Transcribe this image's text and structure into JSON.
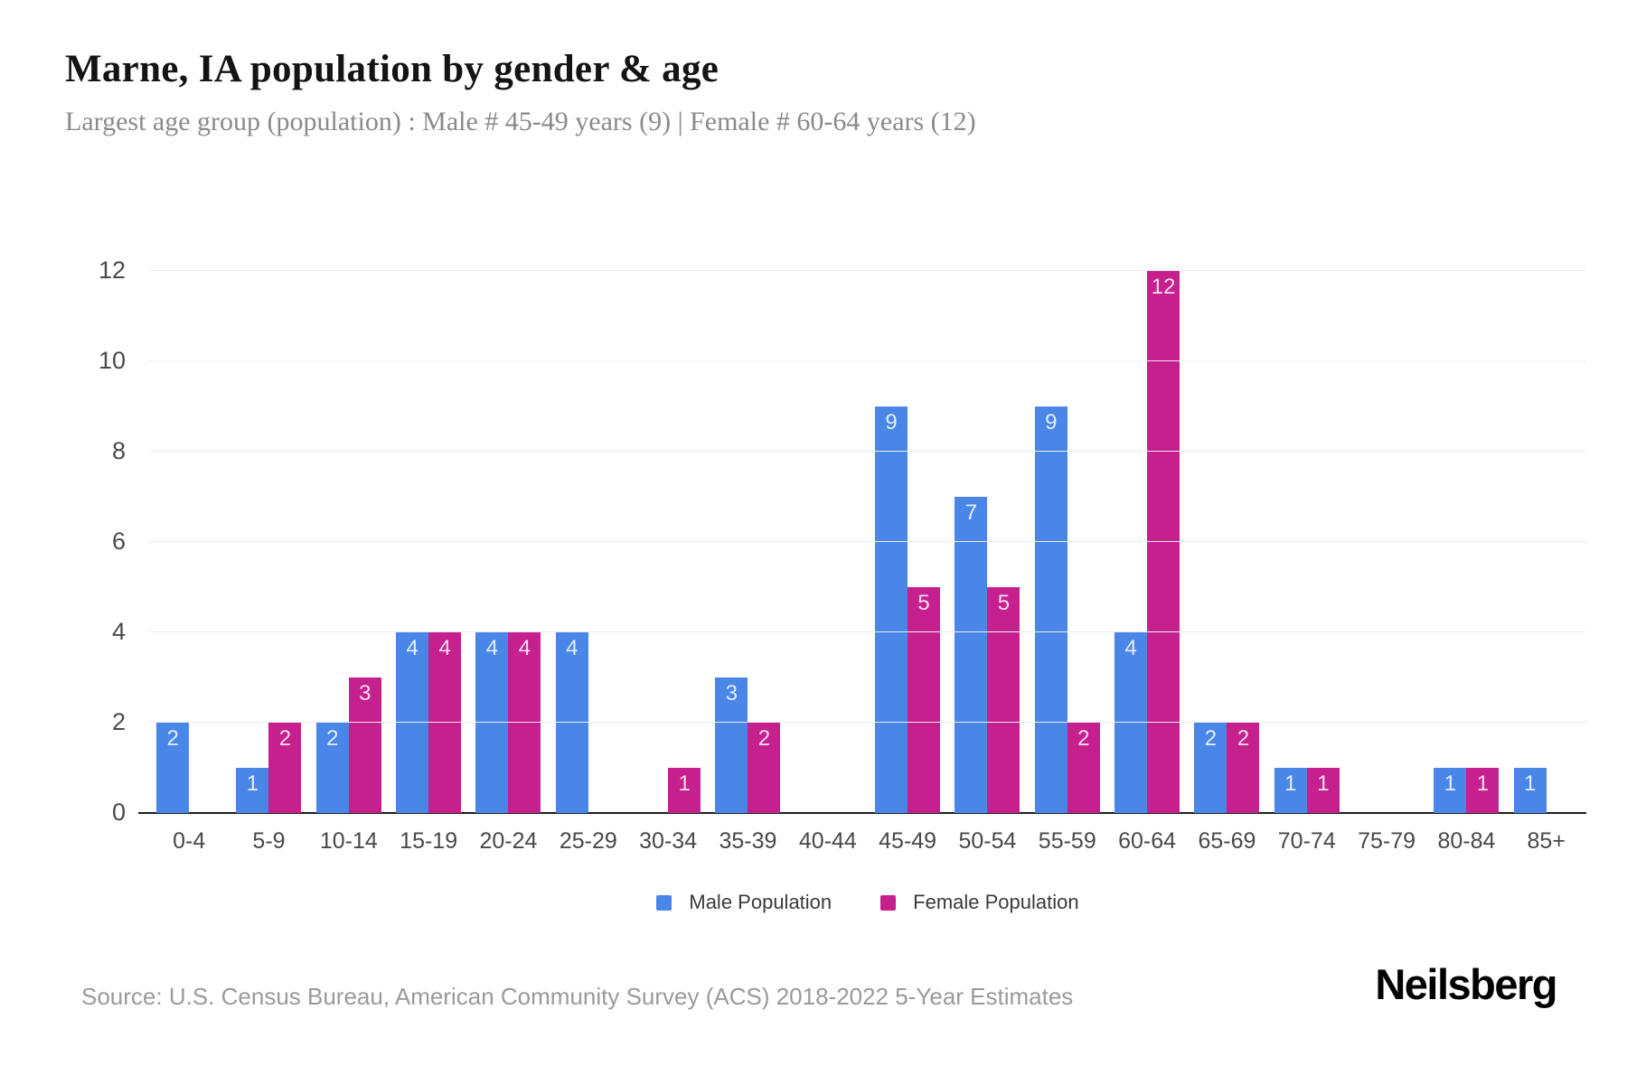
{
  "header": {
    "title": "Marne, IA population by gender & age",
    "subtitle": "Largest age group (population) : Male # 45-49 years (9) | Female # 60-64 years (12)"
  },
  "chart_data": {
    "type": "bar",
    "title": "Marne, IA population by gender & age",
    "categories": [
      "0-4",
      "5-9",
      "10-14",
      "15-19",
      "20-24",
      "25-29",
      "30-34",
      "35-39",
      "40-44",
      "45-49",
      "50-54",
      "55-59",
      "60-64",
      "65-69",
      "70-74",
      "75-79",
      "80-84",
      "85+"
    ],
    "series": [
      {
        "name": "Male Population",
        "id": "male",
        "color": "#4A86E8",
        "values": [
          2,
          1,
          2,
          4,
          4,
          4,
          0,
          3,
          0,
          9,
          7,
          9,
          4,
          2,
          1,
          0,
          1,
          1
        ]
      },
      {
        "name": "Female Population",
        "id": "female",
        "color": "#C6208E",
        "values": [
          0,
          2,
          3,
          4,
          4,
          0,
          1,
          2,
          0,
          5,
          5,
          2,
          12,
          2,
          1,
          0,
          1,
          0
        ]
      }
    ],
    "xlabel": "",
    "ylabel": "",
    "ylim": [
      0,
      12
    ],
    "yticks": [
      0,
      2,
      4,
      6,
      8,
      10,
      12
    ],
    "grid": true,
    "value_labels": true,
    "legend_position": "bottom"
  },
  "legend": {
    "items": [
      {
        "id": "male",
        "label": "Male Population",
        "color": "#4A86E8"
      },
      {
        "id": "female",
        "label": "Female Population",
        "color": "#C6208E"
      }
    ]
  },
  "footer": {
    "source": "Source: U.S. Census Bureau, American Community Survey (ACS) 2018-2022 5-Year Estimates",
    "brand": "Neilsberg"
  }
}
